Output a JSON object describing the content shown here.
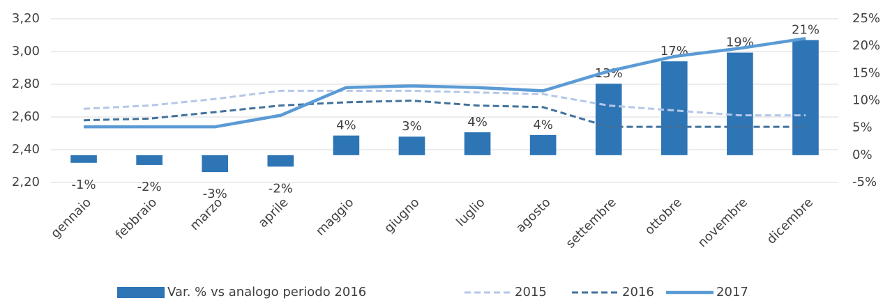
{
  "chart_data": {
    "type": "bar",
    "categories": [
      "gennaio",
      "febbraio",
      "marzo",
      "aprile",
      "maggio",
      "giugno",
      "luglio",
      "agosto",
      "settembre",
      "ottobre",
      "novembre",
      "dicembre"
    ],
    "series": [
      {
        "name": "Var. % vs analogo periodo 2016",
        "type": "bar",
        "axis": "y2",
        "color": "#2e75b6",
        "values": [
          -1.4,
          -1.8,
          -3.1,
          -2.1,
          3.6,
          3.4,
          4.2,
          3.7,
          13.1,
          17.2,
          18.8,
          21.1
        ],
        "value_labels": [
          "-1%",
          "-2%",
          "-3%",
          "-2%",
          "4%",
          "3%",
          "4%",
          "4%",
          "13%",
          "17%",
          "19%",
          "21%"
        ]
      },
      {
        "name": "2015",
        "type": "line",
        "line_style": "dashed",
        "color": "#b4c7e7",
        "values": [
          2.65,
          2.67,
          2.71,
          2.76,
          2.76,
          2.76,
          2.75,
          2.74,
          2.67,
          2.64,
          2.61,
          2.61
        ]
      },
      {
        "name": "2016",
        "type": "line",
        "line_style": "dashed",
        "color": "#41719c",
        "values": [
          2.58,
          2.59,
          2.63,
          2.67,
          2.69,
          2.7,
          2.67,
          2.66,
          2.54,
          2.54,
          2.54,
          2.54
        ]
      },
      {
        "name": "2017",
        "type": "line",
        "line_style": "solid",
        "color": "#5b9bd5",
        "values": [
          2.54,
          2.54,
          2.54,
          2.61,
          2.78,
          2.79,
          2.78,
          2.76,
          2.88,
          2.97,
          3.02,
          3.08
        ]
      }
    ],
    "ylim": [
      2.2,
      3.2
    ],
    "yticks": [
      {
        "value": 2.2,
        "label": "2,20"
      },
      {
        "value": 2.4,
        "label": "2,40"
      },
      {
        "value": 2.6,
        "label": "2,60"
      },
      {
        "value": 2.8,
        "label": "2,80"
      },
      {
        "value": 3.0,
        "label": "3,00"
      },
      {
        "value": 3.2,
        "label": "3,20"
      }
    ],
    "y2lim": [
      -5,
      25
    ],
    "y2ticks": [
      {
        "value": -5,
        "label": "-5%"
      },
      {
        "value": 0,
        "label": "0%"
      },
      {
        "value": 5,
        "label": "5%"
      },
      {
        "value": 10,
        "label": "10%"
      },
      {
        "value": 15,
        "label": "15%"
      },
      {
        "value": 20,
        "label": "20%"
      },
      {
        "value": 25,
        "label": "25%"
      }
    ],
    "grid": true,
    "legend": "bottom"
  }
}
